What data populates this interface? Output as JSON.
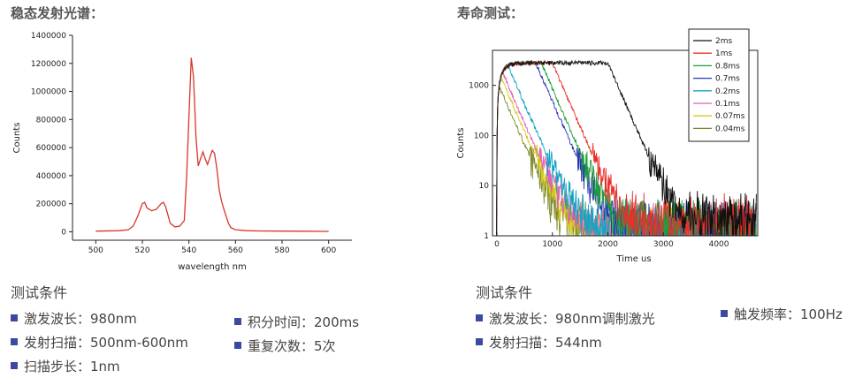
{
  "left": {
    "heading": "稳态发射光谱：",
    "chart_data": {
      "type": "line",
      "xlabel": "wavelength nm",
      "ylabel": "Counts",
      "xlim": [
        490,
        610
      ],
      "ylim": [
        -60000,
        1400000
      ],
      "xticks": [
        "500",
        "520",
        "540",
        "560",
        "580",
        "600"
      ],
      "yticks": [
        "0",
        "200000",
        "400000",
        "600000",
        "800000",
        "1000000",
        "1200000",
        "1400000"
      ],
      "series": [
        {
          "color": "#d9352b",
          "x": [
            500,
            510,
            514,
            516,
            518,
            520,
            521,
            522,
            524,
            526,
            528,
            529,
            530,
            532,
            534,
            536,
            538,
            539,
            540,
            541,
            542,
            543,
            544,
            545,
            546,
            547,
            548,
            549,
            550,
            551,
            552,
            553,
            554,
            555,
            556,
            557,
            558,
            560,
            565,
            570,
            580,
            590,
            600
          ],
          "y": [
            5000,
            8000,
            15000,
            40000,
            110000,
            200000,
            210000,
            170000,
            150000,
            160000,
            200000,
            210000,
            180000,
            60000,
            35000,
            40000,
            80000,
            380000,
            820000,
            1240000,
            1100000,
            680000,
            470000,
            520000,
            570000,
            520000,
            480000,
            530000,
            580000,
            560000,
            450000,
            300000,
            220000,
            160000,
            110000,
            60000,
            30000,
            15000,
            8000,
            6000,
            5000,
            4000,
            3000
          ]
        }
      ]
    },
    "conditions": {
      "title": "测试条件",
      "items": [
        "激发波长：980nm",
        "发射扫描：500nm-600nm",
        "扫描步长：1nm",
        "积分时间：200ms",
        "重复次数：5次"
      ]
    }
  },
  "right": {
    "heading": "寿命测试：",
    "chart_data": {
      "type": "line",
      "xlabel": "Time us",
      "ylabel": "Counts",
      "yscale": "log",
      "xlim": [
        -80,
        4700
      ],
      "ylim": [
        1,
        5000
      ],
      "xticks": [
        "0",
        "1000",
        "2000",
        "3000",
        "4000"
      ],
      "yticks": [
        "1",
        "10",
        "100",
        "1000"
      ],
      "legend_position": "top-right",
      "series": [
        {
          "name": "2ms",
          "color": "#111111",
          "peak_us": 2000,
          "noise_floor": 2.5
        },
        {
          "name": "1ms",
          "color": "#e8302a",
          "peak_us": 1000,
          "noise_floor": 2
        },
        {
          "name": "0.8ms",
          "color": "#1f9e3a",
          "peak_us": 800,
          "noise_floor": 1.8
        },
        {
          "name": "0.7ms",
          "color": "#2a36b8",
          "peak_us": 700,
          "noise_floor": 1.6
        },
        {
          "name": "0.2ms",
          "color": "#17a3c4",
          "peak_us": 200,
          "noise_floor": 1.5
        },
        {
          "name": "0.1ms",
          "color": "#e060b0",
          "peak_us": 100,
          "noise_floor": 1.4
        },
        {
          "name": "0.07ms",
          "color": "#d6c81a",
          "peak_us": 70,
          "noise_floor": 1.3
        },
        {
          "name": "0.04ms",
          "color": "#7a8a2a",
          "peak_us": 40,
          "noise_floor": 1.2
        }
      ],
      "plateau_counts": 2800,
      "decay_tau_us": 170
    },
    "conditions": {
      "title": "测试条件",
      "items": [
        "激发波长：980nm调制激光",
        "发射扫描：544nm",
        "触发频率：100Hz"
      ]
    }
  }
}
